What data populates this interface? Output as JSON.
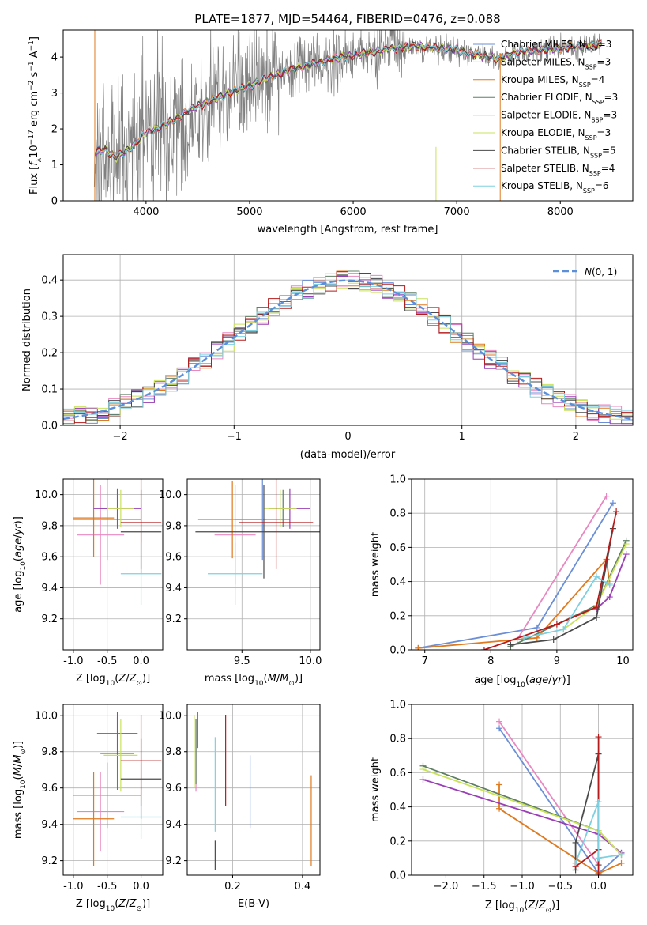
{
  "figure": {
    "title": "PLATE=1877, MJD=54464, FIBERID=0476, z=0.088"
  },
  "colors": {
    "Chabrier MILES": "#6b8fd6",
    "Salpeter MILES": "#e887c1",
    "Kroupa MILES": "#e07a1f",
    "Chabrier ELODIE": "#5f7f63",
    "Salpeter ELODIE": "#9a3fb5",
    "Kroupa ELODIE": "#c9e25c",
    "Chabrier STELIB": "#4a4a4a",
    "Salpeter STELIB": "#b51b1b",
    "Kroupa STELIB": "#7ed0e0",
    "data": "#808080",
    "normal": "#5b8fd9"
  },
  "chart_data": [
    {
      "id": "spectrum",
      "type": "line",
      "title": "PLATE=1877, MJD=54464, FIBERID=0476, z=0.088",
      "xlabel": "wavelength [Angstrom, rest frame]",
      "ylabel": "Flux [f_λ 10^-17 erg cm^-2 s^-1 A^-1]",
      "xlim": [
        3200,
        8700
      ],
      "ylim": [
        0,
        4.75
      ],
      "xticks": [
        4000,
        5000,
        6000,
        7000,
        8000
      ],
      "yticks": [
        0,
        1,
        2,
        3,
        4
      ],
      "grid": false,
      "legend_position": "upper right",
      "data_range": [
        3500,
        8400
      ],
      "continuum": {
        "x": [
          3500,
          3600,
          3700,
          3800,
          3900,
          4000,
          4100,
          4200,
          4300,
          4400,
          4600,
          4800,
          5000,
          5200,
          5400,
          5600,
          5800,
          6000,
          6200,
          6400,
          6600,
          6800,
          7000,
          7200,
          7400,
          7600,
          7800,
          8000,
          8200,
          8400
        ],
        "y": [
          1.3,
          1.45,
          1.2,
          1.35,
          1.6,
          1.9,
          2.0,
          2.15,
          2.3,
          2.5,
          2.75,
          3.0,
          3.2,
          3.45,
          3.65,
          3.8,
          3.95,
          4.05,
          4.15,
          4.25,
          4.3,
          4.25,
          4.2,
          4.05,
          3.95,
          4.15,
          4.2,
          4.25,
          4.3,
          4.35
        ]
      },
      "series": [
        {
          "name": "Chabrier MILES",
          "label": "Chabrier MILES, N",
          "nssp": "3"
        },
        {
          "name": "Salpeter MILES",
          "label": "Salpeter MILES, N",
          "nssp": "3"
        },
        {
          "name": "Kroupa MILES",
          "label": "Kroupa MILES, N",
          "nssp": "4"
        },
        {
          "name": "Chabrier ELODIE",
          "label": "Chabrier ELODIE, N",
          "nssp": "3"
        },
        {
          "name": "Salpeter ELODIE",
          "label": "Salpeter ELODIE, N",
          "nssp": "3"
        },
        {
          "name": "Kroupa ELODIE",
          "label": "Kroupa ELODIE, N",
          "nssp": "3"
        },
        {
          "name": "Chabrier STELIB",
          "label": "Chabrier STELIB, N",
          "nssp": "5"
        },
        {
          "name": "Salpeter STELIB",
          "label": "Salpeter STELIB, N",
          "nssp": "4"
        },
        {
          "name": "Kroupa STELIB",
          "label": "Kroupa STELIB, N",
          "nssp": "6"
        }
      ]
    },
    {
      "id": "residuals",
      "type": "line",
      "xlabel": "(data-model)/error",
      "ylabel": "Normed distribution",
      "xlim": [
        -2.5,
        2.5
      ],
      "ylim": [
        0,
        0.47
      ],
      "xticks": [
        -2,
        -1,
        0,
        1,
        2
      ],
      "yticks": [
        0.0,
        0.1,
        0.2,
        0.3,
        0.4
      ],
      "grid": true,
      "legend_position": "upper right",
      "legend": "N(0,1)",
      "bin_width": 0.1,
      "bins_start": -2.5
    },
    {
      "id": "age_vs_Z",
      "type": "scatter",
      "xlabel": "Z [log10(Z/Z_sun)]",
      "ylabel": "age [log10(age/yr)]",
      "xlim": [
        -1.15,
        0.32
      ],
      "ylim": [
        9.0,
        10.1
      ],
      "xticks": [
        -1.0,
        -0.5,
        0.0
      ],
      "yticks": [
        9.2,
        9.4,
        9.6,
        9.8,
        10.0
      ],
      "grid": true,
      "points": [
        {
          "s": "Chabrier MILES",
          "x": -0.5,
          "xe": 0.5,
          "y": 9.84,
          "ye": 0.26
        },
        {
          "s": "Salpeter MILES",
          "x": -0.6,
          "xe": 0.35,
          "y": 9.74,
          "ye": 0.32
        },
        {
          "s": "Kroupa MILES",
          "x": -0.7,
          "xe": 0.3,
          "y": 9.85,
          "ye": 0.25
        },
        {
          "s": "Chabrier ELODIE",
          "x": -0.35,
          "xe": 0.25,
          "y": 9.91,
          "ye": 0.12
        },
        {
          "s": "Salpeter ELODIE",
          "x": -0.35,
          "xe": 0.35,
          "y": 9.91,
          "ye": 0.13
        },
        {
          "s": "Kroupa ELODIE",
          "x": -0.3,
          "xe": 0.2,
          "y": 9.91,
          "ye": 0.12
        },
        {
          "s": "Chabrier STELIB",
          "x": 0.0,
          "xe": 0.3,
          "y": 9.76,
          "ye": 0.27
        },
        {
          "s": "Salpeter STELIB",
          "x": 0.0,
          "xe": 0.3,
          "y": 9.82,
          "ye": 0.3
        },
        {
          "s": "Kroupa STELIB",
          "x": 0.0,
          "xe": 0.3,
          "y": 9.49,
          "ye": 0.2
        }
      ]
    },
    {
      "id": "age_vs_mass",
      "type": "scatter",
      "xlabel": "mass [log10(M/M_sun)]",
      "ylabel": "",
      "xlim": [
        9.1,
        10.07
      ],
      "ylim": [
        9.0,
        10.1
      ],
      "xticks": [
        9.5,
        10.0
      ],
      "yticks": [
        9.2,
        9.4,
        9.6,
        9.8,
        10.0
      ],
      "grid": true,
      "points": [
        {
          "s": "Chabrier MILES",
          "x": 9.65,
          "xe": 0.2,
          "y": 9.84,
          "ye": 0.26
        },
        {
          "s": "Salpeter MILES",
          "x": 9.45,
          "xe": 0.15,
          "y": 9.74,
          "ye": 0.32
        },
        {
          "s": "Kroupa MILES",
          "x": 9.43,
          "xe": 0.25,
          "y": 9.84,
          "ye": 0.25
        },
        {
          "s": "Chabrier ELODIE",
          "x": 9.8,
          "xe": 0.1,
          "y": 9.91,
          "ye": 0.12
        },
        {
          "s": "Salpeter ELODIE",
          "x": 9.85,
          "xe": 0.15,
          "y": 9.91,
          "ye": 0.13
        },
        {
          "s": "Kroupa ELODIE",
          "x": 9.78,
          "xe": 0.12,
          "y": 9.91,
          "ye": 0.12
        },
        {
          "s": "Chabrier STELIB",
          "x": 9.66,
          "xe": 0.5,
          "y": 9.76,
          "ye": 0.3
        },
        {
          "s": "Salpeter STELIB",
          "x": 9.75,
          "xe": 0.27,
          "y": 9.82,
          "ye": 0.3
        },
        {
          "s": "Kroupa STELIB",
          "x": 9.45,
          "xe": 0.2,
          "y": 9.49,
          "ye": 0.2
        }
      ]
    },
    {
      "id": "weight_vs_age",
      "type": "line",
      "xlabel": "age [log10(age/yr)]",
      "ylabel": "mass weight",
      "xlim": [
        6.8,
        10.15
      ],
      "ylim": [
        0.0,
        1.0
      ],
      "xticks": [
        7,
        8,
        9,
        10
      ],
      "yticks": [
        0.0,
        0.2,
        0.4,
        0.6,
        0.8,
        1.0
      ],
      "grid": true,
      "series": [
        {
          "name": "Chabrier MILES",
          "x": [
            6.9,
            8.7,
            9.85
          ],
          "y": [
            0.01,
            0.13,
            0.86
          ]
        },
        {
          "name": "Salpeter MILES",
          "x": [
            8.4,
            9.75
          ],
          "y": [
            0.06,
            0.9
          ]
        },
        {
          "name": "Kroupa MILES",
          "x": [
            6.9,
            8.7,
            9.75,
            9.8
          ],
          "y": [
            0.01,
            0.07,
            0.53,
            0.39
          ]
        },
        {
          "name": "Chabrier ELODIE",
          "x": [
            8.3,
            9.6,
            10.05
          ],
          "y": [
            0.02,
            0.26,
            0.64
          ]
        },
        {
          "name": "Salpeter ELODIE",
          "x": [
            9.6,
            9.8,
            10.05
          ],
          "y": [
            0.24,
            0.31,
            0.56
          ]
        },
        {
          "name": "Kroupa ELODIE",
          "x": [
            9.1,
            9.6,
            10.05
          ],
          "y": [
            0.12,
            0.26,
            0.62
          ]
        },
        {
          "name": "Chabrier STELIB",
          "x": [
            8.3,
            8.95,
            9.6,
            9.85
          ],
          "y": [
            0.03,
            0.06,
            0.19,
            0.71
          ]
        },
        {
          "name": "Salpeter STELIB",
          "x": [
            7.9,
            9.0,
            9.6,
            9.9
          ],
          "y": [
            0.0,
            0.15,
            0.25,
            0.81
          ]
        },
        {
          "name": "Kroupa STELIB",
          "x": [
            8.5,
            9.1,
            9.6,
            9.8
          ],
          "y": [
            0.07,
            0.12,
            0.43,
            0.38
          ]
        }
      ]
    },
    {
      "id": "mass_vs_Z",
      "type": "scatter",
      "xlabel": "Z [log10(Z/Z_sun)]",
      "ylabel": "mass [log10(M/M_sun)]",
      "xlim": [
        -1.15,
        0.32
      ],
      "ylim": [
        9.12,
        10.06
      ],
      "xticks": [
        -1.0,
        -0.5,
        0.0
      ],
      "yticks": [
        9.2,
        9.4,
        9.6,
        9.8,
        10.0
      ],
      "grid": true,
      "points": [
        {
          "s": "Chabrier MILES",
          "x": -0.5,
          "xe": 0.5,
          "y": 9.56,
          "ye": 0.18
        },
        {
          "s": "Salpeter MILES",
          "x": -0.6,
          "xe": 0.35,
          "y": 9.47,
          "ye": 0.22
        },
        {
          "s": "Kroupa MILES",
          "x": -0.7,
          "xe": 0.3,
          "y": 9.43,
          "ye": 0.26
        },
        {
          "s": "Chabrier ELODIE",
          "x": -0.35,
          "xe": 0.25,
          "y": 9.79,
          "ye": 0.2
        },
        {
          "s": "Salpeter ELODIE",
          "x": -0.35,
          "xe": 0.3,
          "y": 9.9,
          "ye": 0.12
        },
        {
          "s": "Kroupa ELODIE",
          "x": -0.3,
          "xe": 0.25,
          "y": 9.78,
          "ye": 0.2
        },
        {
          "s": "Chabrier STELIB",
          "x": 0.0,
          "xe": 0.3,
          "y": 9.65,
          "ye": 0.22
        },
        {
          "s": "Salpeter STELIB",
          "x": 0.0,
          "xe": 0.3,
          "y": 9.75,
          "ye": 0.25
        },
        {
          "s": "Kroupa STELIB",
          "x": 0.0,
          "xe": 0.3,
          "y": 9.44,
          "ye": 0.12
        }
      ]
    },
    {
      "id": "mass_vs_ebv",
      "type": "scatter",
      "xlabel": "E(B-V)",
      "ylabel": "",
      "xlim": [
        0.07,
        0.45
      ],
      "ylim": [
        9.12,
        10.06
      ],
      "xticks": [
        0.2,
        0.4
      ],
      "yticks": [
        9.2,
        9.4,
        9.6,
        9.8,
        10.0
      ],
      "grid": true,
      "points": [
        {
          "s": "Chabrier MILES",
          "x": 0.25,
          "y": 9.58,
          "ye": 0.2
        },
        {
          "s": "Salpeter MILES",
          "x": 0.095,
          "y": 9.78,
          "ye": 0.2
        },
        {
          "s": "Kroupa MILES",
          "x": 0.425,
          "y": 9.42,
          "ye": 0.25
        },
        {
          "s": "Chabrier ELODIE",
          "x": 0.095,
          "y": 9.8,
          "ye": 0.18
        },
        {
          "s": "Salpeter ELODIE",
          "x": 0.1,
          "y": 9.92,
          "ye": 0.1
        },
        {
          "s": "Kroupa ELODIE",
          "x": 0.09,
          "y": 9.8,
          "ye": 0.2
        },
        {
          "s": "Chabrier STELIB",
          "x": 0.15,
          "y": 9.23,
          "ye": 0.08
        },
        {
          "s": "Salpeter STELIB",
          "x": 0.18,
          "y": 9.75,
          "ye": 0.25
        },
        {
          "s": "Kroupa STELIB",
          "x": 0.15,
          "y": 9.62,
          "ye": 0.26
        }
      ]
    },
    {
      "id": "weight_vs_Z",
      "type": "line",
      "xlabel": "Z [log10(Z/Z_sun)]",
      "ylabel": "mass weight",
      "xlim": [
        -2.45,
        0.45
      ],
      "ylim": [
        0.0,
        1.0
      ],
      "xticks": [
        -2.0,
        -1.5,
        -1.0,
        -0.5,
        0.0
      ],
      "yticks": [
        0.0,
        0.2,
        0.4,
        0.6,
        0.8,
        1.0
      ],
      "grid": true,
      "series": [
        {
          "name": "Chabrier MILES",
          "x": [
            -1.3,
            0.0,
            0.3
          ],
          "y": [
            0.86,
            0.01,
            0.13
          ]
        },
        {
          "name": "Salpeter MILES",
          "x": [
            -1.3,
            0.0
          ],
          "y": [
            0.9,
            0.06
          ]
        },
        {
          "name": "Kroupa MILES",
          "x": [
            -1.3,
            -1.3,
            0.0,
            0.3
          ],
          "y": [
            0.53,
            0.39,
            0.01,
            0.07
          ]
        },
        {
          "name": "Chabrier ELODIE",
          "x": [
            -2.3,
            0.0,
            0.3
          ],
          "y": [
            0.64,
            0.26,
            0.12
          ]
        },
        {
          "name": "Salpeter ELODIE",
          "x": [
            -2.3,
            0.0,
            0.3
          ],
          "y": [
            0.56,
            0.24,
            0.13
          ]
        },
        {
          "name": "Kroupa ELODIE",
          "x": [
            -2.3,
            0.0,
            0.3
          ],
          "y": [
            0.62,
            0.26,
            0.12
          ]
        },
        {
          "name": "Chabrier STELIB",
          "x": [
            -0.3,
            -0.3,
            0.0,
            0.0
          ],
          "y": [
            0.03,
            0.19,
            0.71,
            0.06
          ]
        },
        {
          "name": "Salpeter STELIB",
          "x": [
            -0.3,
            0.0,
            0.0,
            0.0
          ],
          "y": [
            0.05,
            0.15,
            0.81,
            0.0
          ]
        },
        {
          "name": "Kroupa STELIB",
          "x": [
            -0.3,
            0.0,
            0.0,
            0.3
          ],
          "y": [
            0.07,
            0.43,
            0.1,
            0.12
          ]
        }
      ]
    }
  ]
}
